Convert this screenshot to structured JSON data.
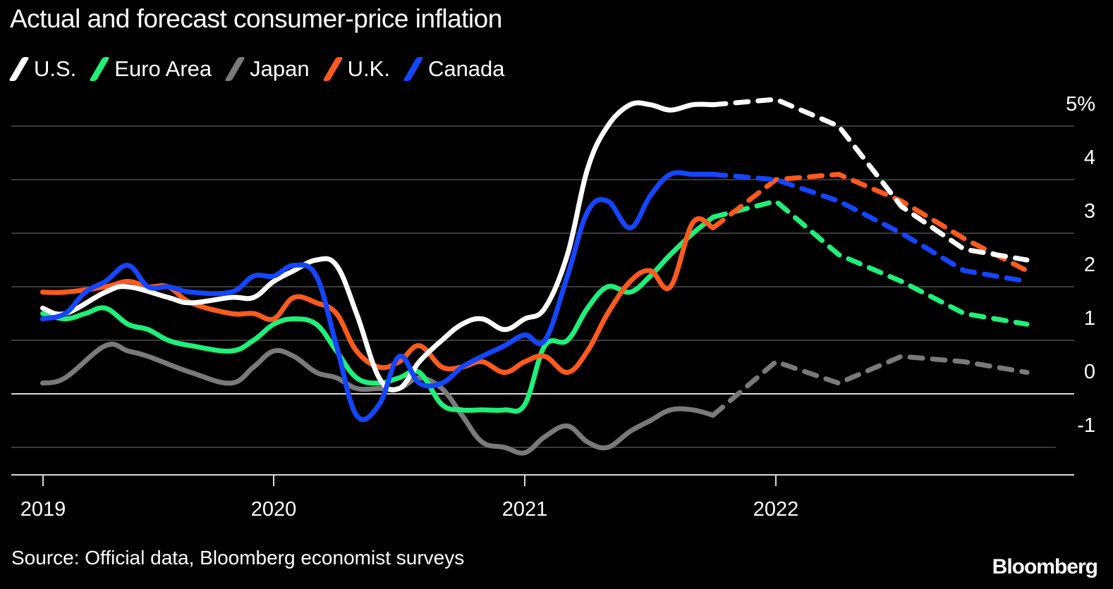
{
  "chart_data": {
    "type": "line",
    "title": "Actual and forecast consumer-price inflation",
    "xlabel": "",
    "ylabel": "",
    "y_unit_suffix": "%",
    "ylim": [
      -1.5,
      5.5
    ],
    "xlim": [
      2019.0,
      2023.1
    ],
    "yticks": [
      5,
      4,
      3,
      2,
      1,
      0,
      -1
    ],
    "ytick_labels": [
      "5%",
      "4",
      "3",
      "2",
      "1",
      "0",
      "-1"
    ],
    "xticks": [
      2019,
      2020,
      2021,
      2022
    ],
    "xtick_labels": [
      "2019",
      "2020",
      "2021",
      "2022"
    ],
    "grid": "horizontal",
    "legend_position": "top-left",
    "actual_style": "solid",
    "forecast_style": "dashed",
    "series": [
      {
        "name": "U.S.",
        "color": "#ffffff",
        "actual": [
          [
            2019.08,
            1.6
          ],
          [
            2019.17,
            1.5
          ],
          [
            2019.33,
            1.9
          ],
          [
            2019.42,
            2.0
          ],
          [
            2019.58,
            1.8
          ],
          [
            2019.67,
            1.7
          ],
          [
            2019.83,
            1.8
          ],
          [
            2019.92,
            1.8
          ],
          [
            2020.0,
            2.1
          ],
          [
            2020.08,
            2.3
          ],
          [
            2020.17,
            2.5
          ],
          [
            2020.25,
            2.4
          ],
          [
            2020.33,
            1.5
          ],
          [
            2020.42,
            0.3
          ],
          [
            2020.5,
            0.1
          ],
          [
            2020.58,
            0.6
          ],
          [
            2020.67,
            1.0
          ],
          [
            2020.75,
            1.3
          ],
          [
            2020.83,
            1.4
          ],
          [
            2020.92,
            1.2
          ],
          [
            2021.0,
            1.4
          ],
          [
            2021.08,
            1.6
          ],
          [
            2021.17,
            2.6
          ],
          [
            2021.25,
            4.2
          ],
          [
            2021.33,
            5.0
          ],
          [
            2021.42,
            5.4
          ],
          [
            2021.5,
            5.4
          ],
          [
            2021.58,
            5.3
          ],
          [
            2021.67,
            5.4
          ],
          [
            2021.75,
            5.4
          ]
        ],
        "forecast": [
          [
            2021.75,
            5.4
          ],
          [
            2022.0,
            5.5
          ],
          [
            2022.25,
            5.0
          ],
          [
            2022.5,
            3.5
          ],
          [
            2022.75,
            2.7
          ],
          [
            2023.0,
            2.5
          ]
        ]
      },
      {
        "name": "Euro Area",
        "color": "#1ef07a",
        "actual": [
          [
            2019.08,
            1.5
          ],
          [
            2019.17,
            1.4
          ],
          [
            2019.25,
            1.5
          ],
          [
            2019.33,
            1.6
          ],
          [
            2019.42,
            1.3
          ],
          [
            2019.5,
            1.2
          ],
          [
            2019.58,
            1.0
          ],
          [
            2019.67,
            0.9
          ],
          [
            2019.83,
            0.8
          ],
          [
            2019.92,
            1.0
          ],
          [
            2020.0,
            1.3
          ],
          [
            2020.08,
            1.4
          ],
          [
            2020.17,
            1.3
          ],
          [
            2020.25,
            0.8
          ],
          [
            2020.33,
            0.3
          ],
          [
            2020.42,
            0.2
          ],
          [
            2020.5,
            0.3
          ],
          [
            2020.58,
            0.4
          ],
          [
            2020.67,
            -0.2
          ],
          [
            2020.75,
            -0.3
          ],
          [
            2020.83,
            -0.3
          ],
          [
            2020.92,
            -0.3
          ],
          [
            2021.0,
            -0.2
          ],
          [
            2021.08,
            0.9
          ],
          [
            2021.17,
            1.0
          ],
          [
            2021.25,
            1.6
          ],
          [
            2021.33,
            2.0
          ],
          [
            2021.42,
            1.9
          ],
          [
            2021.5,
            2.2
          ],
          [
            2021.58,
            2.6
          ],
          [
            2021.67,
            3.0
          ],
          [
            2021.75,
            3.3
          ]
        ],
        "forecast": [
          [
            2021.75,
            3.3
          ],
          [
            2022.0,
            3.6
          ],
          [
            2022.25,
            2.6
          ],
          [
            2022.5,
            2.1
          ],
          [
            2022.75,
            1.5
          ],
          [
            2023.0,
            1.3
          ]
        ]
      },
      {
        "name": "Japan",
        "color": "#7a7a7a",
        "actual": [
          [
            2019.08,
            0.2
          ],
          [
            2019.17,
            0.3
          ],
          [
            2019.33,
            0.9
          ],
          [
            2019.42,
            0.8
          ],
          [
            2019.5,
            0.7
          ],
          [
            2019.67,
            0.4
          ],
          [
            2019.83,
            0.2
          ],
          [
            2019.92,
            0.5
          ],
          [
            2020.0,
            0.8
          ],
          [
            2020.08,
            0.7
          ],
          [
            2020.17,
            0.4
          ],
          [
            2020.25,
            0.3
          ],
          [
            2020.33,
            0.1
          ],
          [
            2020.42,
            0.1
          ],
          [
            2020.5,
            0.1
          ],
          [
            2020.58,
            0.3
          ],
          [
            2020.67,
            0.1
          ],
          [
            2020.75,
            -0.4
          ],
          [
            2020.83,
            -0.9
          ],
          [
            2020.92,
            -1.0
          ],
          [
            2021.0,
            -1.1
          ],
          [
            2021.08,
            -0.8
          ],
          [
            2021.17,
            -0.6
          ],
          [
            2021.25,
            -0.9
          ],
          [
            2021.33,
            -1.0
          ],
          [
            2021.42,
            -0.7
          ],
          [
            2021.5,
            -0.5
          ],
          [
            2021.58,
            -0.3
          ],
          [
            2021.67,
            -0.3
          ],
          [
            2021.75,
            -0.4
          ]
        ],
        "forecast": [
          [
            2021.75,
            -0.4
          ],
          [
            2022.0,
            0.6
          ],
          [
            2022.25,
            0.2
          ],
          [
            2022.5,
            0.7
          ],
          [
            2022.75,
            0.6
          ],
          [
            2023.0,
            0.4
          ]
        ]
      },
      {
        "name": "U.K.",
        "color": "#ff5a1e",
        "actual": [
          [
            2019.08,
            1.9
          ],
          [
            2019.17,
            1.9
          ],
          [
            2019.33,
            2.0
          ],
          [
            2019.42,
            2.1
          ],
          [
            2019.5,
            2.0
          ],
          [
            2019.58,
            2.0
          ],
          [
            2019.67,
            1.7
          ],
          [
            2019.83,
            1.5
          ],
          [
            2019.92,
            1.5
          ],
          [
            2020.0,
            1.4
          ],
          [
            2020.08,
            1.8
          ],
          [
            2020.17,
            1.7
          ],
          [
            2020.25,
            1.5
          ],
          [
            2020.33,
            0.8
          ],
          [
            2020.42,
            0.5
          ],
          [
            2020.5,
            0.6
          ],
          [
            2020.58,
            0.9
          ],
          [
            2020.67,
            0.5
          ],
          [
            2020.75,
            0.5
          ],
          [
            2020.83,
            0.6
          ],
          [
            2020.92,
            0.4
          ],
          [
            2021.0,
            0.6
          ],
          [
            2021.08,
            0.7
          ],
          [
            2021.17,
            0.4
          ],
          [
            2021.25,
            0.8
          ],
          [
            2021.33,
            1.5
          ],
          [
            2021.42,
            2.1
          ],
          [
            2021.5,
            2.3
          ],
          [
            2021.58,
            2.0
          ],
          [
            2021.67,
            3.2
          ],
          [
            2021.75,
            3.1
          ]
        ],
        "forecast": [
          [
            2021.75,
            3.1
          ],
          [
            2022.0,
            4.0
          ],
          [
            2022.25,
            4.1
          ],
          [
            2022.5,
            3.6
          ],
          [
            2022.75,
            2.9
          ],
          [
            2023.0,
            2.3
          ]
        ]
      },
      {
        "name": "Canada",
        "color": "#1446ff",
        "actual": [
          [
            2019.08,
            1.4
          ],
          [
            2019.17,
            1.5
          ],
          [
            2019.25,
            1.9
          ],
          [
            2019.33,
            2.1
          ],
          [
            2019.42,
            2.4
          ],
          [
            2019.5,
            2.0
          ],
          [
            2019.58,
            2.0
          ],
          [
            2019.67,
            1.9
          ],
          [
            2019.83,
            1.9
          ],
          [
            2019.92,
            2.2
          ],
          [
            2020.0,
            2.2
          ],
          [
            2020.08,
            2.4
          ],
          [
            2020.17,
            2.2
          ],
          [
            2020.25,
            0.9
          ],
          [
            2020.33,
            -0.4
          ],
          [
            2020.42,
            -0.2
          ],
          [
            2020.5,
            0.7
          ],
          [
            2020.58,
            0.2
          ],
          [
            2020.67,
            0.2
          ],
          [
            2020.75,
            0.5
          ],
          [
            2020.83,
            0.7
          ],
          [
            2020.92,
            0.9
          ],
          [
            2021.0,
            1.1
          ],
          [
            2021.08,
            1.0
          ],
          [
            2021.17,
            2.2
          ],
          [
            2021.25,
            3.4
          ],
          [
            2021.33,
            3.6
          ],
          [
            2021.42,
            3.1
          ],
          [
            2021.5,
            3.7
          ],
          [
            2021.58,
            4.1
          ],
          [
            2021.67,
            4.1
          ],
          [
            2021.75,
            4.1
          ]
        ],
        "forecast": [
          [
            2021.75,
            4.1
          ],
          [
            2022.0,
            4.0
          ],
          [
            2022.25,
            3.6
          ],
          [
            2022.5,
            3.0
          ],
          [
            2022.75,
            2.3
          ],
          [
            2023.0,
            2.1
          ]
        ]
      }
    ],
    "source": "Source: Official data, Bloomberg economist surveys",
    "brand": "Bloomberg"
  }
}
